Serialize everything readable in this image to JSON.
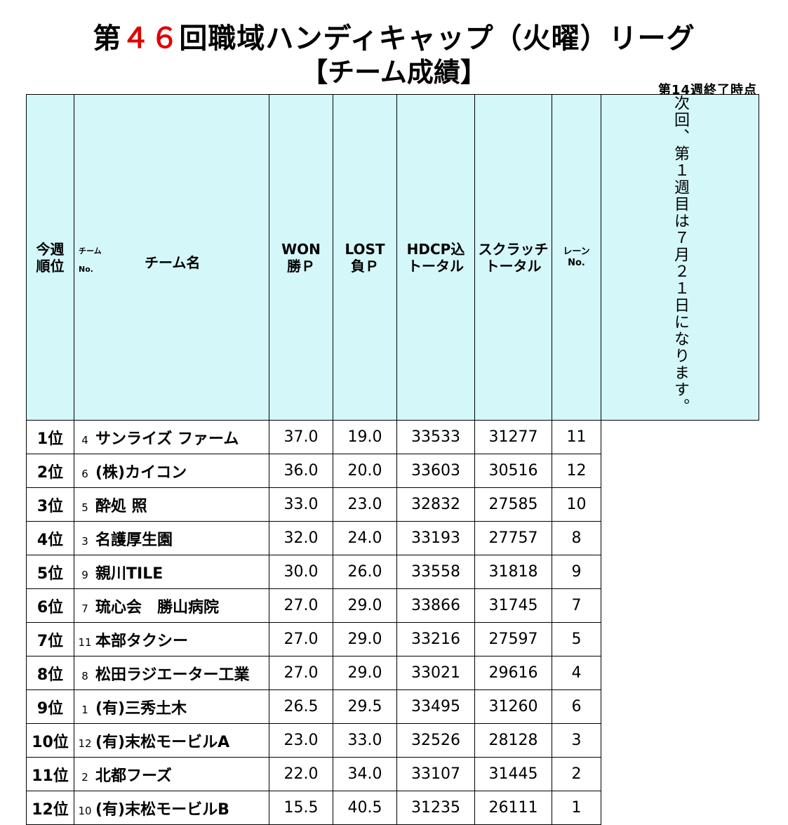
{
  "title": {
    "prefix": "第",
    "number": "４６",
    "suffix": "回職域ハンディキャップ（火曜）リーグ",
    "subtitle": "【チーム成績】"
  },
  "as_of": "第14週終了時点",
  "headers": {
    "rank_l1": "今週",
    "rank_l2": "順位",
    "team_l1": "チーム",
    "team_l2": "No.",
    "team_name": "チーム名",
    "won_l1": "WON",
    "won_l2": "勝Ｐ",
    "lost_l1": "LOST",
    "lost_l2": "負Ｐ",
    "hdcp_l1": "HDCP込",
    "hdcp_l2": "トータル",
    "scr_l1": "スクラッチ",
    "scr_l2": "トータル",
    "lane_l1": "レーン",
    "lane_l2": "No."
  },
  "rows": [
    {
      "rank": "1位",
      "no": "4",
      "team": "サンライズ ファーム",
      "won": "37.0",
      "lost": "19.0",
      "hdcp": "33533",
      "scratch": "31277",
      "lane": "11"
    },
    {
      "rank": "2位",
      "no": "6",
      "team": "(株)カイコン",
      "won": "36.0",
      "lost": "20.0",
      "hdcp": "33603",
      "scratch": "30516",
      "lane": "12"
    },
    {
      "rank": "3位",
      "no": "5",
      "team": "酔処 照",
      "won": "33.0",
      "lost": "23.0",
      "hdcp": "32832",
      "scratch": "27585",
      "lane": "10"
    },
    {
      "rank": "4位",
      "no": "3",
      "team": "名護厚生園",
      "won": "32.0",
      "lost": "24.0",
      "hdcp": "33193",
      "scratch": "27757",
      "lane": "8"
    },
    {
      "rank": "5位",
      "no": "9",
      "team": "親川TILE",
      "won": "30.0",
      "lost": "26.0",
      "hdcp": "33558",
      "scratch": "31818",
      "lane": "9"
    },
    {
      "rank": "6位",
      "no": "7",
      "team": "琉心会　勝山病院",
      "won": "27.0",
      "lost": "29.0",
      "hdcp": "33866",
      "scratch": "31745",
      "lane": "7"
    },
    {
      "rank": "7位",
      "no": "11",
      "team": "本部タクシー",
      "won": "27.0",
      "lost": "29.0",
      "hdcp": "33216",
      "scratch": "27597",
      "lane": "5"
    },
    {
      "rank": "8位",
      "no": "8",
      "team": "松田ラジエーター工業",
      "won": "27.0",
      "lost": "29.0",
      "hdcp": "33021",
      "scratch": "29616",
      "lane": "4"
    },
    {
      "rank": "9位",
      "no": "1",
      "team": "(有)三秀土木",
      "won": "26.5",
      "lost": "29.5",
      "hdcp": "33495",
      "scratch": "31260",
      "lane": "6"
    },
    {
      "rank": "10位",
      "no": "12",
      "team": "(有)末松モービルA",
      "won": "23.0",
      "lost": "33.0",
      "hdcp": "32526",
      "scratch": "28128",
      "lane": "3"
    },
    {
      "rank": "11位",
      "no": "2",
      "team": "北都フーズ",
      "won": "22.0",
      "lost": "34.0",
      "hdcp": "33107",
      "scratch": "31445",
      "lane": "2"
    },
    {
      "rank": "12位",
      "no": "10",
      "team": "(有)末松モービルB",
      "won": "15.5",
      "lost": "40.5",
      "hdcp": "31235",
      "scratch": "26111",
      "lane": "1"
    }
  ],
  "note": "次回、第１週目は７月２１日になります。"
}
